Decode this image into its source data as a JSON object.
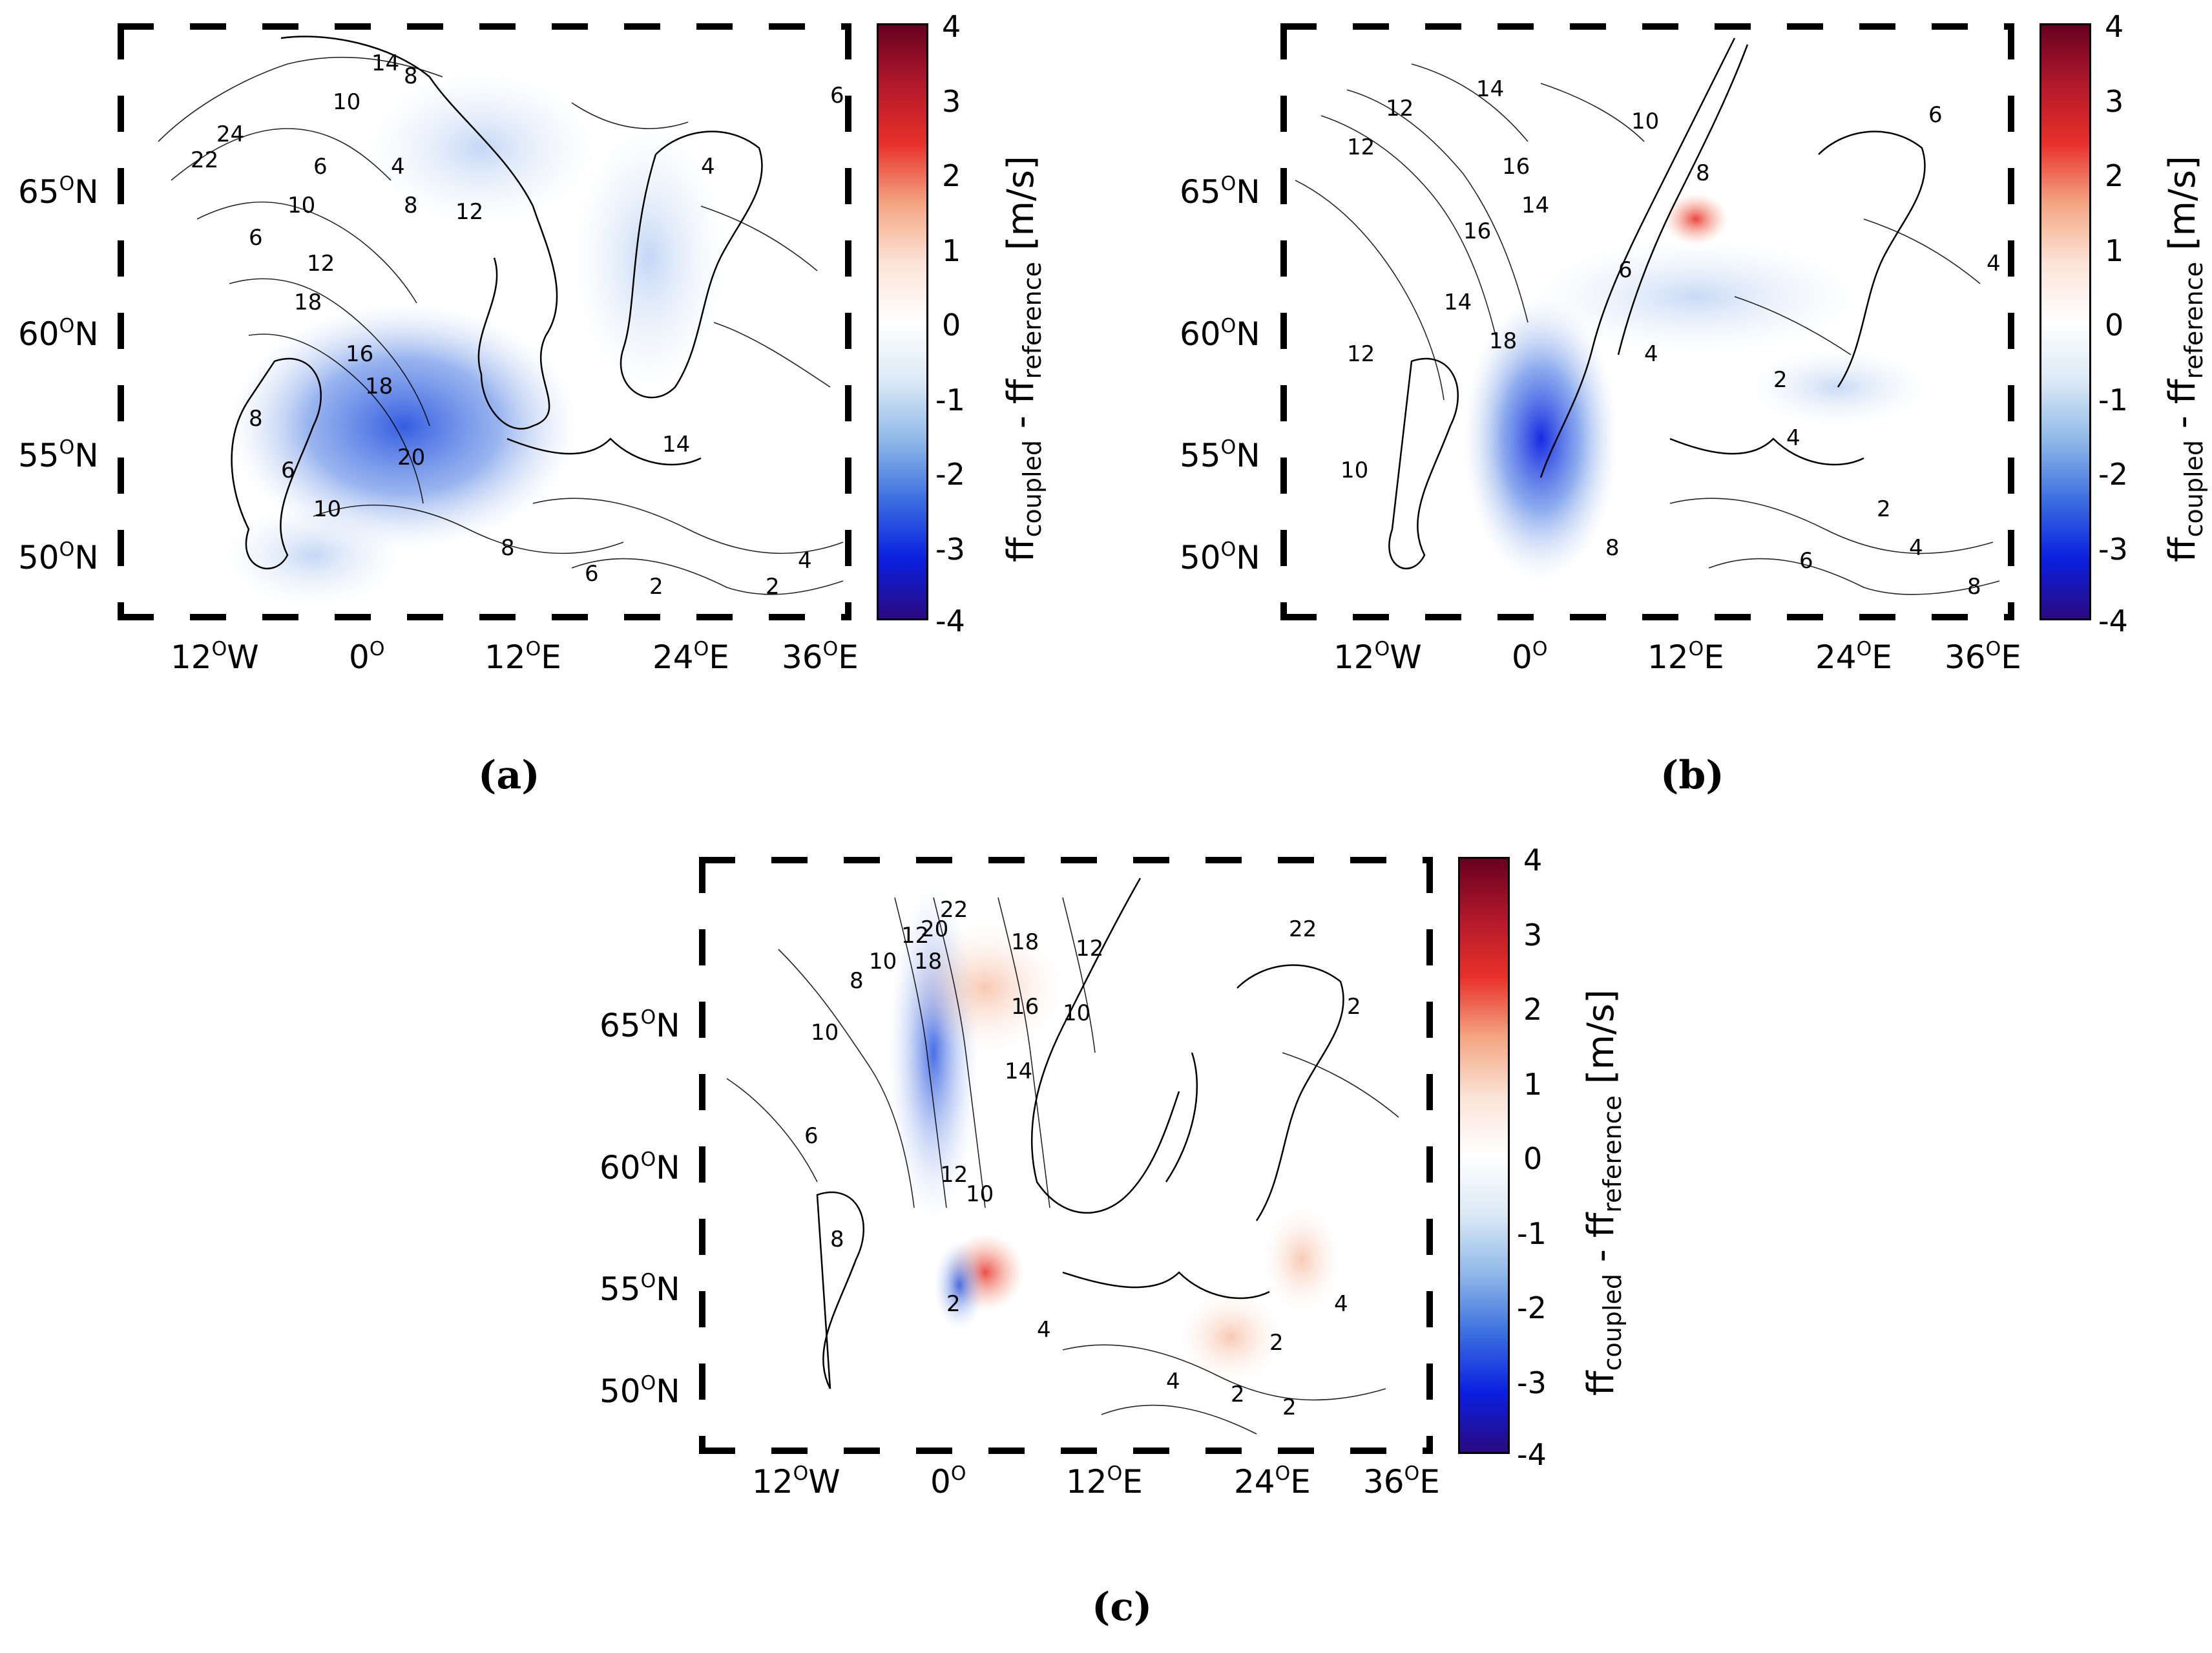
{
  "colorbar": {
    "ticks": [
      "4",
      "3",
      "2",
      "1",
      "0",
      "-1",
      "-2",
      "-3",
      "-4"
    ],
    "title_main": "ff",
    "title_sub1": "coupled",
    "title_mid": " - ff",
    "title_sub2": "reference",
    "title_unit": " [m/s]",
    "colors": [
      "#67001f",
      "#b2182b",
      "#e8312a",
      "#f4a582",
      "#fbe3d6",
      "#ffffff",
      "#dbe9f6",
      "#8fb8e8",
      "#3b6fe0",
      "#0a1fe0",
      "#2a0a80"
    ]
  },
  "axes": {
    "lat_labels": [
      "65",
      "60",
      "55",
      "50"
    ],
    "lat_suffix": "N",
    "lon_labels": [
      "12",
      "0",
      "12",
      "24",
      "36"
    ],
    "lon_suffixes": [
      "W",
      "",
      "E",
      "E",
      "E"
    ],
    "degree_symbol": "O"
  },
  "panels": [
    {
      "caption": "(a)",
      "contour_labels": [
        "14",
        "8",
        "10",
        "24",
        "22",
        "6",
        "4",
        "12",
        "10",
        "8",
        "6",
        "18",
        "16",
        "18",
        "20",
        "12",
        "8",
        "6",
        "10",
        "14",
        "8",
        "6",
        "2",
        "4",
        "2",
        "4",
        "6"
      ]
    },
    {
      "caption": "(b)",
      "contour_labels": [
        "12",
        "14",
        "16",
        "12",
        "14",
        "16",
        "18",
        "12",
        "14",
        "10",
        "8",
        "6",
        "4",
        "2",
        "4",
        "6",
        "8",
        "10",
        "2",
        "4",
        "6",
        "8",
        "4"
      ]
    },
    {
      "caption": "(c)",
      "contour_labels": [
        "8",
        "10",
        "12",
        "18",
        "20",
        "22",
        "16",
        "18",
        "14",
        "12",
        "10",
        "12",
        "10",
        "8",
        "6",
        "4",
        "2",
        "4",
        "2",
        "2",
        "4",
        "2",
        "22",
        "10",
        "2"
      ]
    }
  ]
}
